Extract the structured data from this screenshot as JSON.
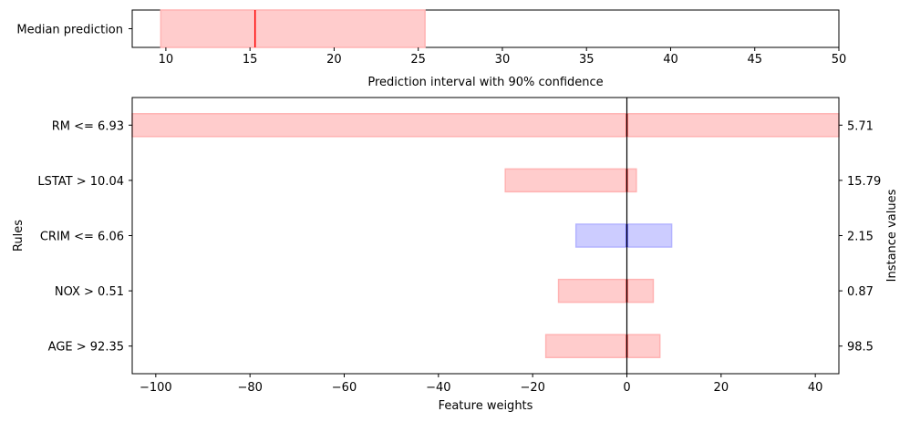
{
  "chart_data": [
    {
      "type": "bar",
      "subtype": "interval",
      "categories": [
        "Median prediction"
      ],
      "interval": {
        "low": 9.7,
        "median": 15.3,
        "high": 25.4
      },
      "xlabel": "Prediction interval with 90% confidence",
      "ylabel": "",
      "xlim": [
        8,
        50
      ],
      "xticks": [
        10,
        15,
        20,
        25,
        30,
        35,
        40,
        45,
        50
      ],
      "colors": {
        "fill": "#ffcccc",
        "edge": "#ffb3b3",
        "median": "#ff0000"
      }
    },
    {
      "type": "bar",
      "subtype": "feature-weights-with-uncertainty",
      "categories": [
        "RM <= 6.93",
        "LSTAT > 10.04",
        "CRIM <= 6.06",
        "NOX > 0.51",
        "AGE > 92.35"
      ],
      "instance_values": [
        "5.71",
        "15.79",
        "2.15",
        "0.87",
        "98.5"
      ],
      "weights": [
        {
          "low": -105,
          "high": 45,
          "value": 0,
          "color": "red"
        },
        {
          "low": -25.8,
          "high": 2.0,
          "value": 0,
          "color": "red"
        },
        {
          "low": -10.8,
          "high": 9.5,
          "value": 0,
          "color": "blue"
        },
        {
          "low": -14.5,
          "high": 5.6,
          "value": 0,
          "color": "red"
        },
        {
          "low": -17.2,
          "high": 7.0,
          "value": 0,
          "color": "red"
        }
      ],
      "xlabel": "Feature weights",
      "ylabel": "Rules",
      "y2label": "Instance values",
      "xlim": [
        -105,
        45
      ],
      "xticks": [
        -100,
        -80,
        -60,
        -40,
        -20,
        0,
        20,
        40
      ],
      "xtick_labels": [
        "−100",
        "−80",
        "−60",
        "−40",
        "−20",
        "0",
        "20",
        "40"
      ],
      "zero_line": true,
      "colors": {
        "red_fill": "#ffcccc",
        "red_edge": "#ffb3b3",
        "blue_fill": "#ccccff",
        "blue_edge": "#b3b3ff",
        "red_mark": "#ff0000",
        "blue_mark": "#0000ff"
      }
    }
  ]
}
